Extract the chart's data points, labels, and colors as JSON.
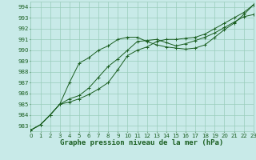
{
  "title": "Graphe pression niveau de la mer (hPa)",
  "bg_color": "#c8eae8",
  "grid_color": "#99ccbb",
  "line_color": "#1a5e20",
  "xlim": [
    0,
    23
  ],
  "ylim": [
    982.5,
    994.5
  ],
  "yticks": [
    983,
    984,
    985,
    986,
    987,
    988,
    989,
    990,
    991,
    992,
    993,
    994
  ],
  "xticks": [
    0,
    1,
    2,
    3,
    4,
    5,
    6,
    7,
    8,
    9,
    10,
    11,
    12,
    13,
    14,
    15,
    16,
    17,
    18,
    19,
    20,
    21,
    22,
    23
  ],
  "series1_x": [
    0,
    1,
    2,
    3,
    4,
    5,
    6,
    7,
    8,
    9,
    10,
    11,
    12,
    13,
    14,
    15,
    16,
    17,
    18,
    19,
    20,
    21,
    22,
    23
  ],
  "series1_y": [
    982.6,
    983.1,
    984.0,
    985.0,
    985.2,
    985.5,
    985.9,
    986.4,
    987.0,
    988.2,
    989.5,
    990.0,
    990.3,
    990.8,
    991.0,
    991.0,
    991.1,
    991.2,
    991.5,
    992.0,
    992.5,
    993.0,
    993.5,
    994.2
  ],
  "series2_x": [
    0,
    1,
    2,
    3,
    4,
    5,
    6,
    7,
    8,
    9,
    10,
    11,
    12,
    13,
    14,
    15,
    16,
    17,
    18,
    19,
    20,
    21,
    22,
    23
  ],
  "series2_y": [
    982.6,
    983.1,
    984.0,
    985.0,
    987.0,
    988.8,
    989.3,
    990.0,
    990.4,
    991.0,
    991.2,
    991.2,
    990.8,
    990.5,
    990.3,
    990.2,
    990.1,
    990.2,
    990.5,
    991.2,
    991.9,
    992.5,
    993.3,
    994.2
  ],
  "series3_x": [
    0,
    1,
    2,
    3,
    4,
    5,
    6,
    7,
    8,
    9,
    10,
    11,
    12,
    13,
    14,
    15,
    16,
    17,
    18,
    19,
    20,
    21,
    22,
    23
  ],
  "series3_y": [
    982.6,
    983.1,
    984.0,
    985.0,
    985.5,
    985.8,
    986.5,
    987.5,
    988.5,
    989.2,
    990.0,
    990.8,
    990.9,
    991.0,
    990.7,
    990.4,
    990.6,
    990.9,
    991.2,
    991.6,
    992.1,
    992.6,
    993.1,
    993.3
  ],
  "tick_fontsize": 5,
  "xlabel_fontsize": 6.5
}
